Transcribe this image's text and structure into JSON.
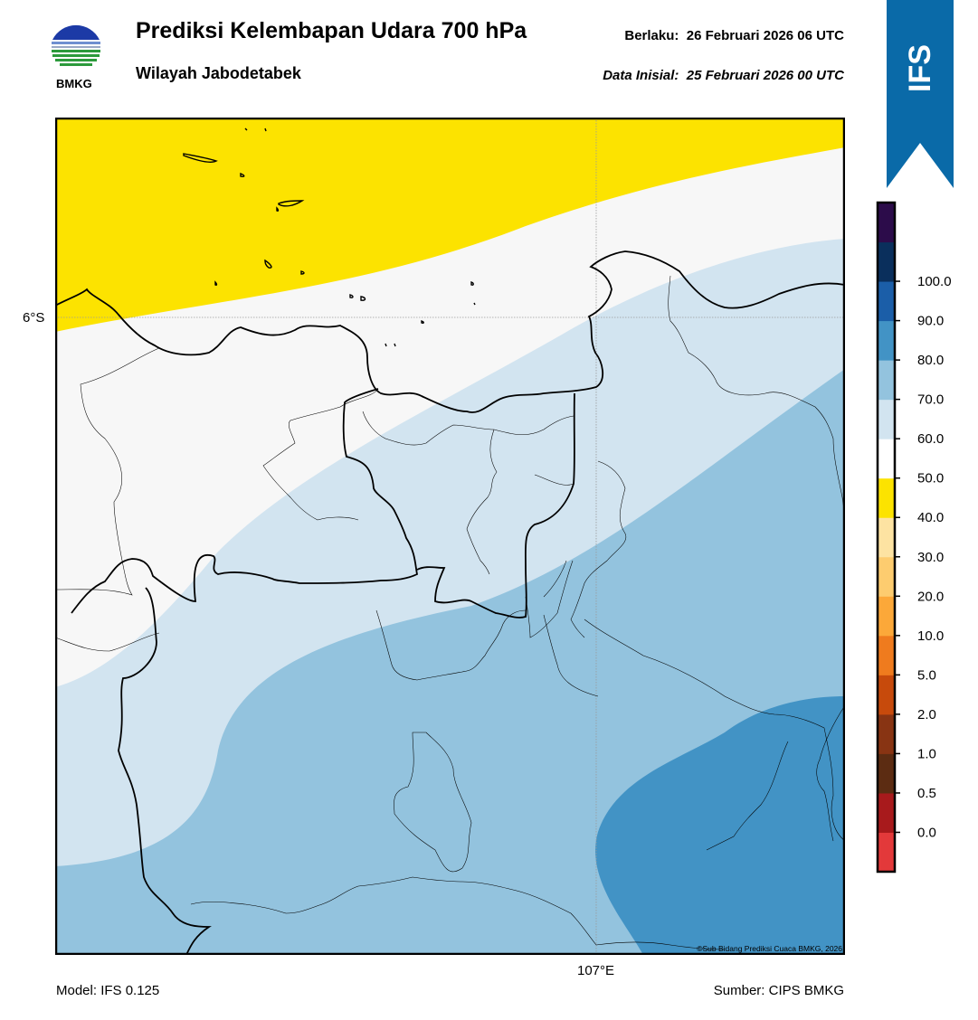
{
  "header": {
    "title": "Prediksi Kelembapan Udara 700 hPa",
    "subtitle": "Wilayah Jabodetabek",
    "valid_label": "Berlaku:",
    "valid_value": "26 Februari 2026 06 UTC",
    "init_label": "Data Inisial:",
    "init_value": "25 Februari 2026 00 UTC"
  },
  "logo": {
    "text": "BMKG",
    "icon": "bmkg-logo-icon"
  },
  "ribbon": {
    "text": "IFS",
    "color": "#0a6aa8"
  },
  "map": {
    "lat_label": "6°S",
    "lon_label": "107°E",
    "copyright": "©Sub Bidang Prediksi Cuaca BMKG, 2026"
  },
  "footer": {
    "model": "Model: IFS 0.125",
    "source": "Sumber: CIPS BMKG"
  },
  "colorbar": {
    "ticks": [
      "0.0",
      "0.5",
      "1.0",
      "2.0",
      "5.0",
      "10.0",
      "20.0",
      "30.0",
      "40.0",
      "50.0",
      "60.0",
      "70.0",
      "80.0",
      "90.0",
      "100.0"
    ],
    "colors_bottom_to_top": [
      "#e3393a",
      "#a81a1c",
      "#5c2c12",
      "#883413",
      "#c74a0c",
      "#ef7b1e",
      "#fca839",
      "#fdcc6f",
      "#fde3a2",
      "#fce300",
      "#ffffff",
      "#d2e4f0",
      "#93c3de",
      "#4293c5",
      "#1b5ea8",
      "#0a2f5c",
      "#2c0c4a"
    ]
  },
  "fields": {
    "colors": {
      "lt40": "#fce300",
      "b50_60": "#f7f7f7",
      "b60_70": "#d2e4f0",
      "b70_80": "#93c3de",
      "b80_90": "#4293c5"
    }
  }
}
